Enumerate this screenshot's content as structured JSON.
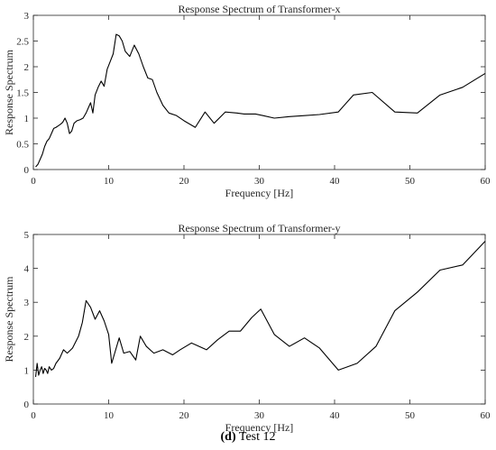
{
  "chart_data": [
    {
      "type": "line",
      "title": "Response Spectrum of Transformer-x",
      "xlabel": "Frequency [Hz]",
      "ylabel": "Response Spectrum",
      "xlim": [
        0,
        60
      ],
      "ylim": [
        0,
        3
      ],
      "xticks": [
        "0",
        "10",
        "20",
        "30",
        "40",
        "50",
        "60"
      ],
      "yticks": [
        "0",
        "0.5",
        "1",
        "1.5",
        "2",
        "2.5",
        "3"
      ],
      "grid": false,
      "series": [
        {
          "x": [
            0.3,
            0.6,
            0.9,
            1.2,
            1.5,
            1.8,
            2.1,
            2.4,
            2.7,
            3.0,
            3.3,
            3.6,
            3.9,
            4.2,
            4.5,
            4.8,
            5.1,
            5.4,
            5.8,
            6.2,
            6.6,
            7.0,
            7.3,
            7.6,
            7.9,
            8.2,
            8.6,
            9.0,
            9.4,
            9.8,
            10.2,
            10.6,
            11.0,
            11.4,
            11.8,
            12.2,
            12.8,
            13.4,
            14.0,
            14.6,
            15.2,
            15.8,
            16.4,
            17.2,
            18.0,
            19.0,
            20.0,
            21.5,
            22.8,
            24.0,
            25.5,
            27.0,
            28.0,
            29.5,
            30.5,
            32.0,
            34.0,
            36.0,
            38.0,
            40.5,
            42.5,
            45.0,
            48.0,
            51.0,
            54.0,
            57.0,
            60.0
          ],
          "y": [
            0.05,
            0.1,
            0.2,
            0.3,
            0.45,
            0.55,
            0.6,
            0.7,
            0.8,
            0.82,
            0.85,
            0.88,
            0.92,
            1.0,
            0.9,
            0.7,
            0.75,
            0.9,
            0.95,
            0.97,
            1.0,
            1.1,
            1.2,
            1.3,
            1.1,
            1.45,
            1.6,
            1.72,
            1.62,
            1.95,
            2.1,
            2.25,
            2.63,
            2.6,
            2.5,
            2.3,
            2.2,
            2.42,
            2.25,
            2.0,
            1.78,
            1.75,
            1.5,
            1.25,
            1.1,
            1.05,
            0.95,
            0.82,
            1.12,
            0.9,
            1.12,
            1.1,
            1.08,
            1.08,
            1.05,
            1.0,
            1.03,
            1.05,
            1.07,
            1.12,
            1.45,
            1.5,
            1.12,
            1.1,
            1.45,
            1.6,
            1.87
          ]
        }
      ]
    },
    {
      "type": "line",
      "title": "Response Spectrum of Transformer-y",
      "xlabel": "Frequency [Hz]",
      "ylabel": "Response Spectrum",
      "xlim": [
        0,
        60
      ],
      "ylim": [
        0,
        5
      ],
      "xticks": [
        "0",
        "10",
        "20",
        "30",
        "40",
        "50",
        "60"
      ],
      "yticks": [
        "0",
        "1",
        "2",
        "3",
        "4",
        "5"
      ],
      "grid": false,
      "series": [
        {
          "x": [
            0.3,
            0.5,
            0.7,
            0.9,
            1.1,
            1.3,
            1.5,
            1.7,
            1.9,
            2.1,
            2.4,
            2.7,
            3.0,
            3.5,
            4.0,
            4.5,
            5.2,
            6.0,
            6.5,
            7.0,
            7.6,
            8.2,
            8.8,
            9.4,
            10.0,
            10.4,
            10.8,
            11.4,
            12.0,
            12.8,
            13.6,
            14.2,
            15.0,
            16.0,
            17.2,
            18.5,
            19.5,
            21.0,
            23.0,
            24.5,
            26.0,
            27.5,
            29.0,
            30.2,
            32.0,
            34.0,
            36.0,
            38.0,
            40.5,
            43.0,
            45.5,
            48.0,
            51.0,
            54.0,
            57.0,
            60.0
          ],
          "y": [
            0.8,
            1.2,
            0.85,
            1.0,
            1.1,
            0.9,
            1.05,
            1.0,
            0.9,
            1.1,
            1.0,
            1.05,
            1.2,
            1.35,
            1.6,
            1.5,
            1.65,
            2.0,
            2.4,
            3.05,
            2.85,
            2.5,
            2.75,
            2.45,
            2.05,
            1.2,
            1.5,
            1.95,
            1.5,
            1.55,
            1.3,
            2.0,
            1.7,
            1.5,
            1.6,
            1.45,
            1.6,
            1.8,
            1.6,
            1.9,
            2.15,
            2.15,
            2.55,
            2.8,
            2.05,
            1.7,
            1.95,
            1.65,
            1.0,
            1.2,
            1.7,
            2.75,
            3.3,
            3.95,
            4.1,
            4.8
          ]
        }
      ]
    }
  ],
  "caption": {
    "label": "(d)",
    "text": " Test 12"
  }
}
